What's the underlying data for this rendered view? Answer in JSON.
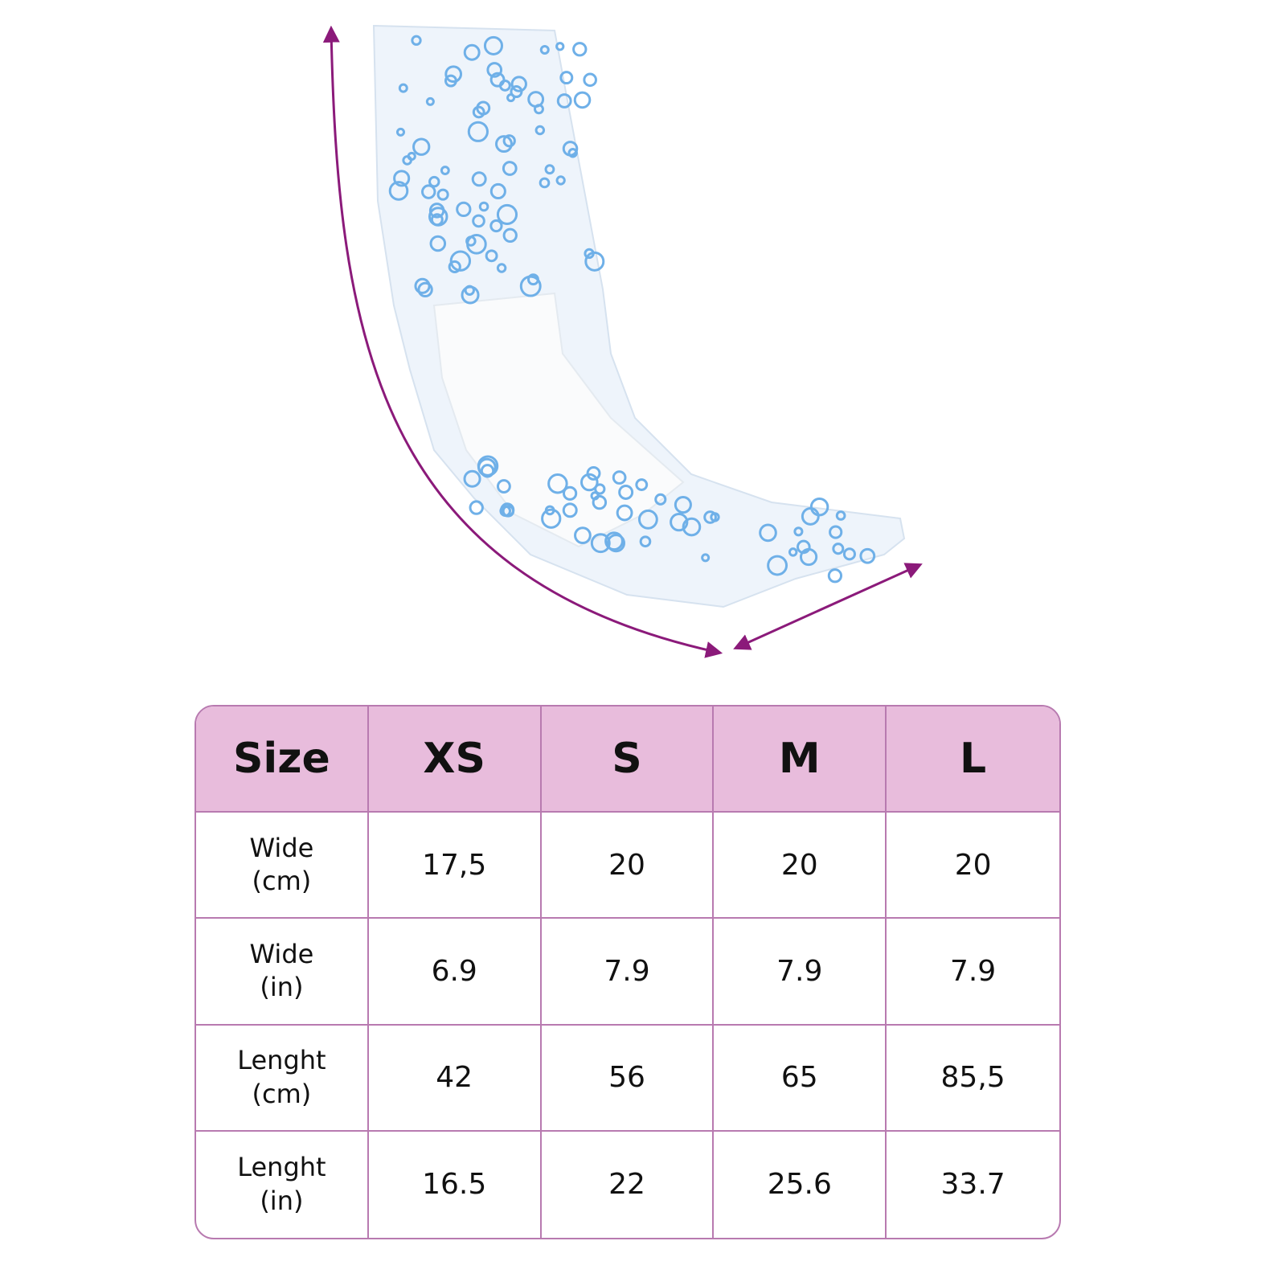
{
  "table": {
    "header": [
      "Size",
      "XS",
      "S",
      "M",
      "L"
    ],
    "rows": [
      [
        "Wide\n(cm)",
        "17,5",
        "20",
        "20",
        "20"
      ],
      [
        "Wide\n(in)",
        "6.9",
        "7.9",
        "7.9",
        "7.9"
      ],
      [
        "Lenght\n(cm)",
        "42",
        "56",
        "65",
        "85,5"
      ],
      [
        "Lenght\n(in)",
        "16.5",
        "22",
        "25.6",
        "33.7"
      ]
    ]
  }
}
